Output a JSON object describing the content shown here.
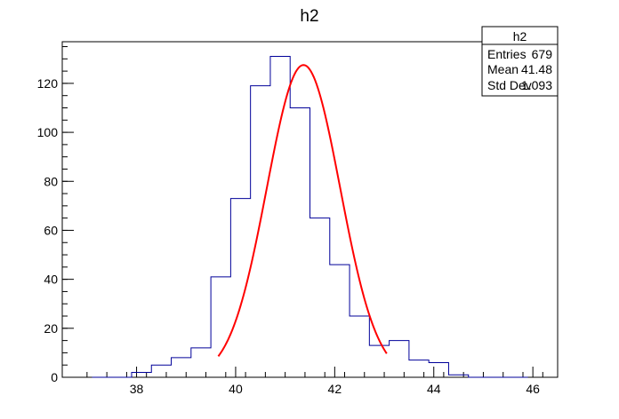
{
  "chart_data": {
    "type": "bar",
    "title": "h2",
    "xlabel": "",
    "ylabel": "",
    "xlim": [
      36.5,
      46.5
    ],
    "ylim": [
      0,
      137
    ],
    "grid": false,
    "x_ticks": [
      38,
      40,
      42,
      44,
      46
    ],
    "y_ticks": [
      0,
      20,
      40,
      60,
      80,
      100,
      120
    ],
    "histogram": {
      "bin_edges": [
        37.1,
        37.5,
        37.9,
        38.3,
        38.7,
        39.1,
        39.5,
        39.9,
        40.3,
        40.7,
        41.1,
        41.5,
        41.9,
        42.3,
        42.7,
        43.1,
        43.5,
        43.9,
        44.3,
        44.7,
        45.1,
        45.5,
        45.9
      ],
      "counts": [
        0,
        0,
        2,
        5,
        8,
        12,
        41,
        73,
        119,
        131,
        110,
        65,
        46,
        25,
        13,
        15,
        7,
        6,
        1,
        0,
        0,
        0
      ],
      "color": "#000099"
    },
    "fit": {
      "type": "gaussian",
      "amplitude": 127.5,
      "mean": 41.37,
      "sigma": 0.74,
      "x_range": [
        39.65,
        43.05
      ],
      "color": "#ff0000"
    },
    "stats_box": {
      "title": "h2",
      "rows": [
        {
          "label": "Entries",
          "value": "679"
        },
        {
          "label": "Mean",
          "value": "41.48"
        },
        {
          "label": "Std Dev",
          "value": "1.093"
        }
      ]
    }
  }
}
